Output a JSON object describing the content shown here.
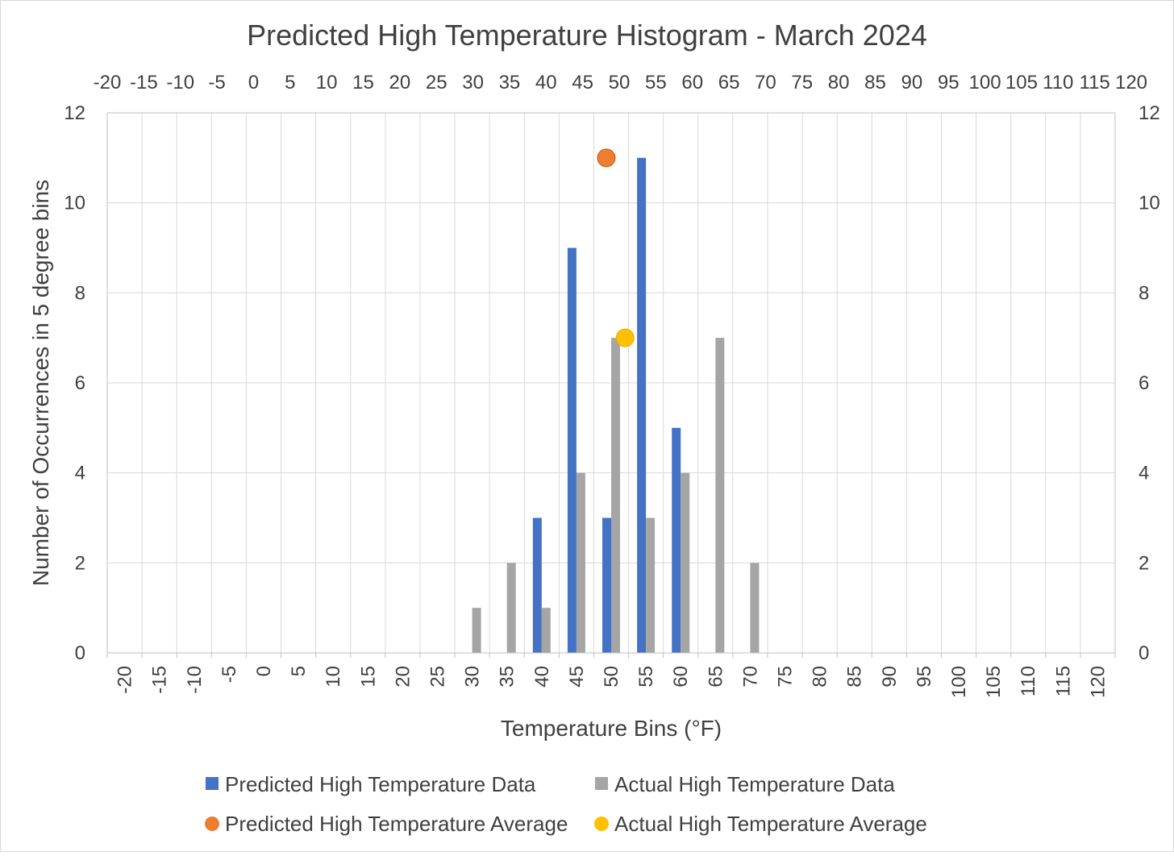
{
  "chart_data": {
    "type": "bar",
    "title": "Predicted High Temperature Histogram - March 2024",
    "xlabel": "Temperature Bins (°F)",
    "ylabel": "Number of Occurrences in 5 degree bins",
    "categories": [
      "-20",
      "-15",
      "-10",
      "-5",
      "0",
      "5",
      "10",
      "15",
      "20",
      "25",
      "30",
      "35",
      "40",
      "45",
      "50",
      "55",
      "60",
      "65",
      "70",
      "75",
      "80",
      "85",
      "90",
      "95",
      "100",
      "105",
      "110",
      "115",
      "120"
    ],
    "top_axis_labels": [
      "-20",
      "-15",
      "-10",
      "-5",
      "0",
      "5",
      "10",
      "15",
      "20",
      "25",
      "30",
      "35",
      "40",
      "45",
      "50",
      "55",
      "60",
      "65",
      "70",
      "75",
      "80",
      "85",
      "90",
      "95",
      "100",
      "105",
      "110",
      "115",
      "120"
    ],
    "ylim": [
      0,
      12
    ],
    "yticks": [
      0,
      2,
      4,
      6,
      8,
      10,
      12
    ],
    "grid": true,
    "legend_position": "bottom",
    "series": [
      {
        "name": "Predicted High Temperature Data",
        "type": "bar",
        "color": "#4472C4",
        "values": [
          0,
          0,
          0,
          0,
          0,
          0,
          0,
          0,
          0,
          0,
          0,
          0,
          3,
          9,
          3,
          11,
          5,
          0,
          0,
          0,
          0,
          0,
          0,
          0,
          0,
          0,
          0,
          0,
          0
        ]
      },
      {
        "name": "Actual High Temperature Data",
        "type": "bar",
        "color": "#A5A5A5",
        "values": [
          0,
          0,
          0,
          0,
          0,
          0,
          0,
          0,
          0,
          0,
          1,
          2,
          1,
          4,
          7,
          3,
          4,
          7,
          2,
          0,
          0,
          0,
          0,
          0,
          0,
          0,
          0,
          0,
          0
        ]
      },
      {
        "name": "Predicted High Temperature Average",
        "type": "scatter",
        "color": "#ED7D31",
        "x": 49.3,
        "y": 11
      },
      {
        "name": "Actual High Temperature Average",
        "type": "scatter",
        "color": "#FFC000",
        "x": 52.0,
        "y": 7
      }
    ],
    "legend": [
      {
        "label": "Predicted High Temperature Data",
        "color": "#4472C4",
        "marker": "square"
      },
      {
        "label": "Actual High Temperature Data",
        "color": "#A5A5A5",
        "marker": "square"
      },
      {
        "label": "Predicted High Temperature Average",
        "color": "#ED7D31",
        "marker": "circle"
      },
      {
        "label": "Actual High Temperature Average",
        "color": "#FFC000",
        "marker": "circle"
      }
    ]
  }
}
